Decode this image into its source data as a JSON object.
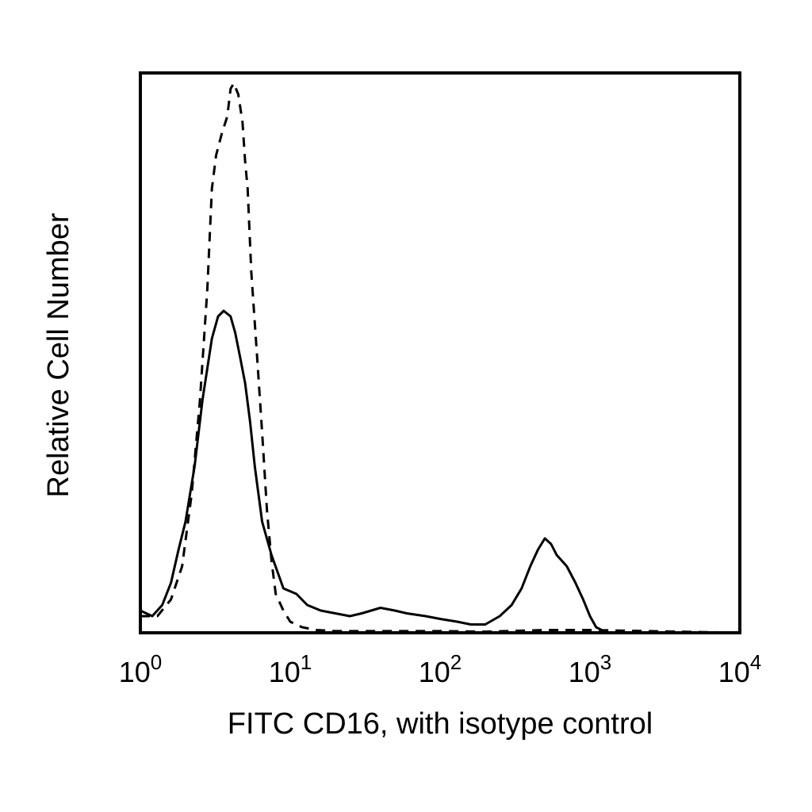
{
  "chart_data": {
    "type": "line",
    "title": "",
    "xlabel": "FITC CD16, with isotype control",
    "ylabel": "Relative Cell Number",
    "x_scale": "log",
    "xlim": [
      1,
      10000
    ],
    "ylim": [
      0,
      1
    ],
    "x_ticks": [
      {
        "value": 1,
        "base": "10",
        "exp": "0"
      },
      {
        "value": 10,
        "base": "10",
        "exp": "1"
      },
      {
        "value": 100,
        "base": "10",
        "exp": "2"
      },
      {
        "value": 1000,
        "base": "10",
        "exp": "3"
      },
      {
        "value": 10000,
        "base": "10",
        "exp": "4"
      }
    ],
    "grid": false,
    "legend": "none",
    "series": [
      {
        "style": "dashed",
        "color": "#000000",
        "x": [
          1.0,
          1.3,
          1.6,
          1.9,
          2.2,
          2.5,
          2.8,
          3.0,
          3.2,
          3.5,
          3.8,
          4.0,
          4.2,
          4.5,
          4.8,
          5.0,
          5.2,
          5.5,
          6.0,
          6.5,
          7.0,
          7.5,
          8.0,
          9.0,
          10.0,
          12.0,
          15.0,
          20.0,
          30.0,
          50.0,
          100.0,
          200.0,
          500.0,
          1000.0,
          10000.0
        ],
        "y": [
          0.03,
          0.03,
          0.06,
          0.12,
          0.25,
          0.42,
          0.62,
          0.8,
          0.86,
          0.9,
          0.93,
          0.98,
          0.99,
          0.97,
          0.92,
          0.85,
          0.8,
          0.65,
          0.5,
          0.36,
          0.22,
          0.13,
          0.07,
          0.04,
          0.02,
          0.01,
          0.005,
          0.003,
          0.003,
          0.003,
          0.003,
          0.002,
          0.005,
          0.005,
          0.0
        ]
      },
      {
        "style": "solid",
        "color": "#000000",
        "x": [
          1.0,
          1.2,
          1.4,
          1.6,
          1.8,
          2.0,
          2.3,
          2.6,
          3.0,
          3.3,
          3.6,
          4.0,
          4.3,
          4.6,
          5.0,
          5.4,
          5.8,
          6.5,
          7.5,
          9.0,
          11.0,
          13.0,
          16.0,
          20.0,
          25.0,
          30.0,
          40.0,
          50.0,
          60.0,
          80.0,
          100.0,
          130.0,
          160.0,
          200.0,
          250.0,
          300.0,
          350.0,
          400.0,
          450.0,
          500.0,
          550.0,
          600.0,
          700.0,
          800.0,
          900.0,
          1000.0,
          1100.0,
          1300.0,
          10000.0
        ],
        "y": [
          0.04,
          0.03,
          0.05,
          0.09,
          0.15,
          0.2,
          0.3,
          0.42,
          0.53,
          0.57,
          0.58,
          0.57,
          0.54,
          0.5,
          0.45,
          0.38,
          0.3,
          0.2,
          0.14,
          0.08,
          0.07,
          0.05,
          0.04,
          0.035,
          0.03,
          0.035,
          0.045,
          0.04,
          0.035,
          0.03,
          0.025,
          0.02,
          0.015,
          0.015,
          0.03,
          0.05,
          0.08,
          0.12,
          0.15,
          0.17,
          0.16,
          0.14,
          0.12,
          0.09,
          0.06,
          0.03,
          0.01,
          0.0,
          0.0
        ]
      }
    ]
  }
}
